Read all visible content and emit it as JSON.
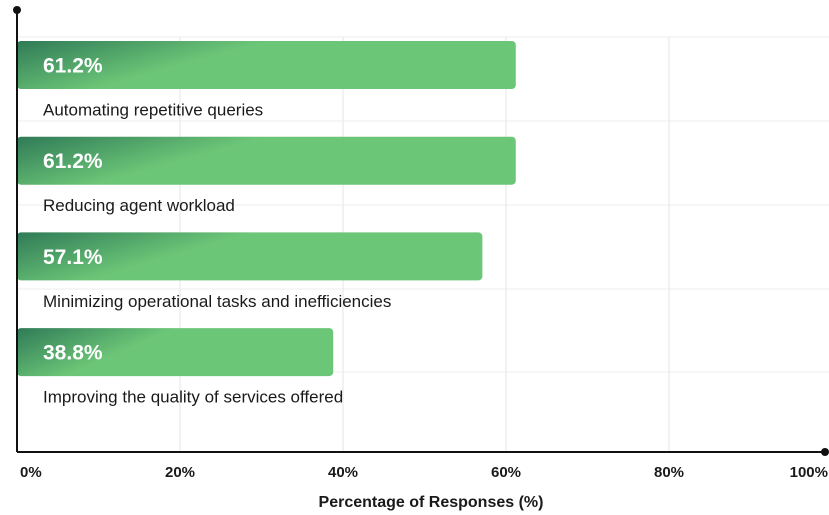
{
  "chart_data": {
    "type": "barh",
    "xlabel": "Percentage of Responses (%)",
    "categories": [
      "Automating repetitive queries",
      "Reducing agent workload",
      "Minimizing operational tasks and inefficiencies",
      "Improving the quality of services offered"
    ],
    "values": [
      61.2,
      61.2,
      57.1,
      38.8
    ],
    "value_labels": [
      "61.2%",
      "61.2%",
      "57.1%",
      "38.8%"
    ],
    "color": "#6cc677",
    "xlim": [
      0,
      100
    ],
    "xticks": [
      {
        "value": 0,
        "label": "0%"
      },
      {
        "value": 20,
        "label": "20%"
      },
      {
        "value": 40,
        "label": "40%"
      },
      {
        "value": 60,
        "label": "60%"
      },
      {
        "value": 80,
        "label": "80%"
      },
      {
        "value": 100,
        "label": "100%"
      }
    ],
    "grid": true
  }
}
